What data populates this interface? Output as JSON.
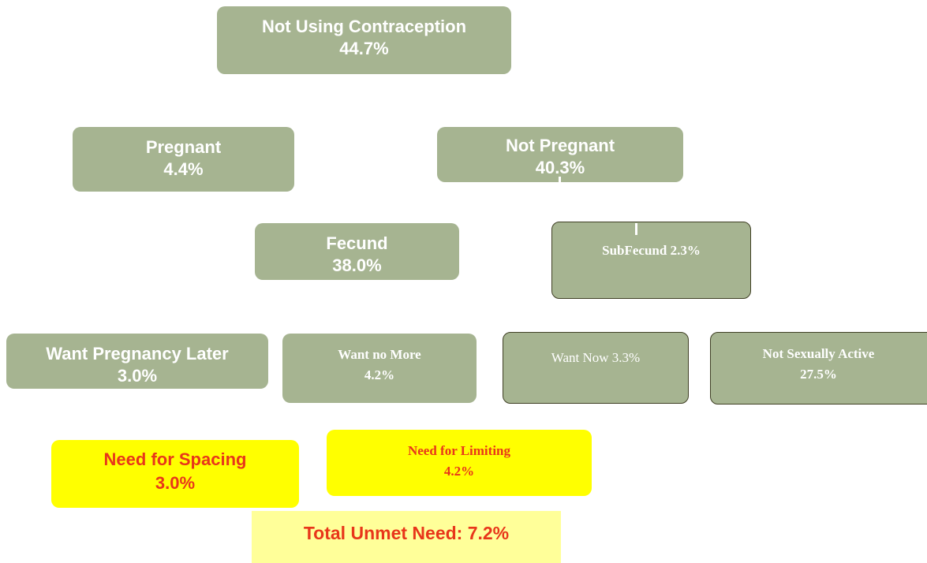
{
  "nodes": [
    {
      "lines": [
        "Not Using Contraception",
        "44.7%"
      ]
    },
    {
      "lines": [
        "Pregnant",
        "4.4%"
      ]
    },
    {
      "lines": [
        "Not Pregnant",
        "40.3%"
      ]
    },
    {
      "lines": [
        "Fecund",
        "38.0%"
      ]
    },
    {
      "lines": [
        "SubFecund  2.3%"
      ]
    },
    {
      "lines": [
        "Want Pregnancy Later",
        "3.0%"
      ]
    },
    {
      "lines": [
        "Want no More",
        "4.2%"
      ]
    },
    {
      "lines": [
        "Want Now 3.3%"
      ]
    },
    {
      "lines": [
        "Not Sexually Active",
        "27.5%"
      ]
    },
    {
      "lines": [
        "Need for Spacing",
        "3.0%"
      ]
    },
    {
      "lines": [
        "Need for Limiting",
        "4.2%"
      ]
    },
    {
      "lines": [
        "Total Unmet Need: 7.2%"
      ]
    }
  ]
}
